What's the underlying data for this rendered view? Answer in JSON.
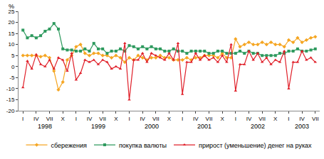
{
  "chart_data": {
    "type": "line",
    "y_label": "%",
    "categories": [
      "I",
      null,
      null,
      "IV",
      null,
      null,
      "VII",
      null,
      null,
      "X",
      null,
      null,
      "I",
      null,
      null,
      "IV",
      null,
      null,
      "VII",
      null,
      null,
      "X",
      null,
      null,
      "I",
      null,
      null,
      "IV",
      null,
      null,
      "VII",
      null,
      null,
      "X",
      null,
      null,
      "I",
      null,
      null,
      "IV",
      null,
      null,
      "VII",
      null,
      null,
      "X",
      null,
      null,
      "I",
      null,
      null,
      "IV",
      null,
      null,
      "VII",
      null,
      null,
      "X",
      null,
      null,
      "I",
      null,
      null,
      "IV",
      null,
      null,
      "VII"
    ],
    "series": [
      {
        "name": "сбережения",
        "color": "#f5a623",
        "marker": "diamond",
        "line_style": "solid",
        "values": [
          5,
          5,
          5,
          5,
          4.5,
          5,
          4,
          -2,
          -10.5,
          -7,
          3,
          5,
          9,
          10,
          6,
          5,
          6,
          6,
          5,
          5,
          4,
          5,
          4,
          2,
          4,
          3,
          5,
          4,
          3,
          4,
          4,
          5,
          4,
          4,
          3,
          3,
          3,
          4,
          3,
          4,
          4,
          5,
          5,
          5,
          4,
          6,
          4,
          4,
          12.5,
          9,
          10,
          11,
          10,
          10,
          11,
          10,
          11,
          10,
          10,
          9,
          12,
          11,
          13,
          11,
          12,
          13,
          13.5
        ]
      },
      {
        "name": "покупка валюты",
        "color": "#2e9a5e",
        "marker": "square",
        "line_style": "solid",
        "values": [
          16.5,
          13,
          14,
          13,
          14,
          16,
          17,
          19.5,
          17,
          8,
          7.5,
          7.5,
          7,
          7,
          8,
          7,
          10.5,
          8,
          8,
          6,
          7,
          7,
          8,
          7,
          9.5,
          9,
          8,
          9,
          8,
          9,
          8,
          8,
          7,
          7,
          8,
          7,
          7,
          6,
          7,
          7,
          7,
          7,
          6,
          6,
          7,
          7,
          6,
          6,
          6,
          7,
          6,
          7,
          6,
          6,
          5,
          5,
          5,
          5,
          6,
          6,
          7,
          7,
          8,
          7,
          7,
          7.5,
          8
        ]
      },
      {
        "name": "прирост (уменьшение) денег на руках",
        "color": "#e0202a",
        "marker": "triangle-up",
        "line_style": "solid",
        "values": [
          -9.5,
          2.5,
          -1,
          5.5,
          1,
          0,
          3,
          -1,
          4,
          3,
          -2,
          6,
          -6,
          -3,
          3,
          2,
          3,
          1,
          3,
          2,
          -1,
          0,
          -1,
          10.5,
          -15,
          3,
          3,
          6,
          2,
          6,
          5,
          4,
          3,
          6,
          3,
          10.5,
          -12.5,
          2,
          2,
          6,
          3,
          5,
          3,
          4,
          2,
          5,
          2,
          10,
          -11,
          1,
          1,
          7,
          3,
          6,
          2,
          4,
          1,
          3,
          2,
          7,
          -10,
          2,
          2,
          7,
          3,
          4,
          2
        ]
      }
    ],
    "annotations": [
      {
        "text": "1998",
        "x": 5
      },
      {
        "text": "1999",
        "x": 17
      },
      {
        "text": "2000",
        "x": 29
      },
      {
        "text": "2001",
        "x": 41
      },
      {
        "text": "2002",
        "x": 53
      },
      {
        "text": "2003",
        "x": 63
      }
    ],
    "ylim": [
      -20,
      25
    ],
    "yticks": [
      -20,
      -15,
      -10,
      -5,
      0,
      5,
      10,
      15,
      20,
      25
    ],
    "grid": false,
    "legend": "bottom"
  }
}
